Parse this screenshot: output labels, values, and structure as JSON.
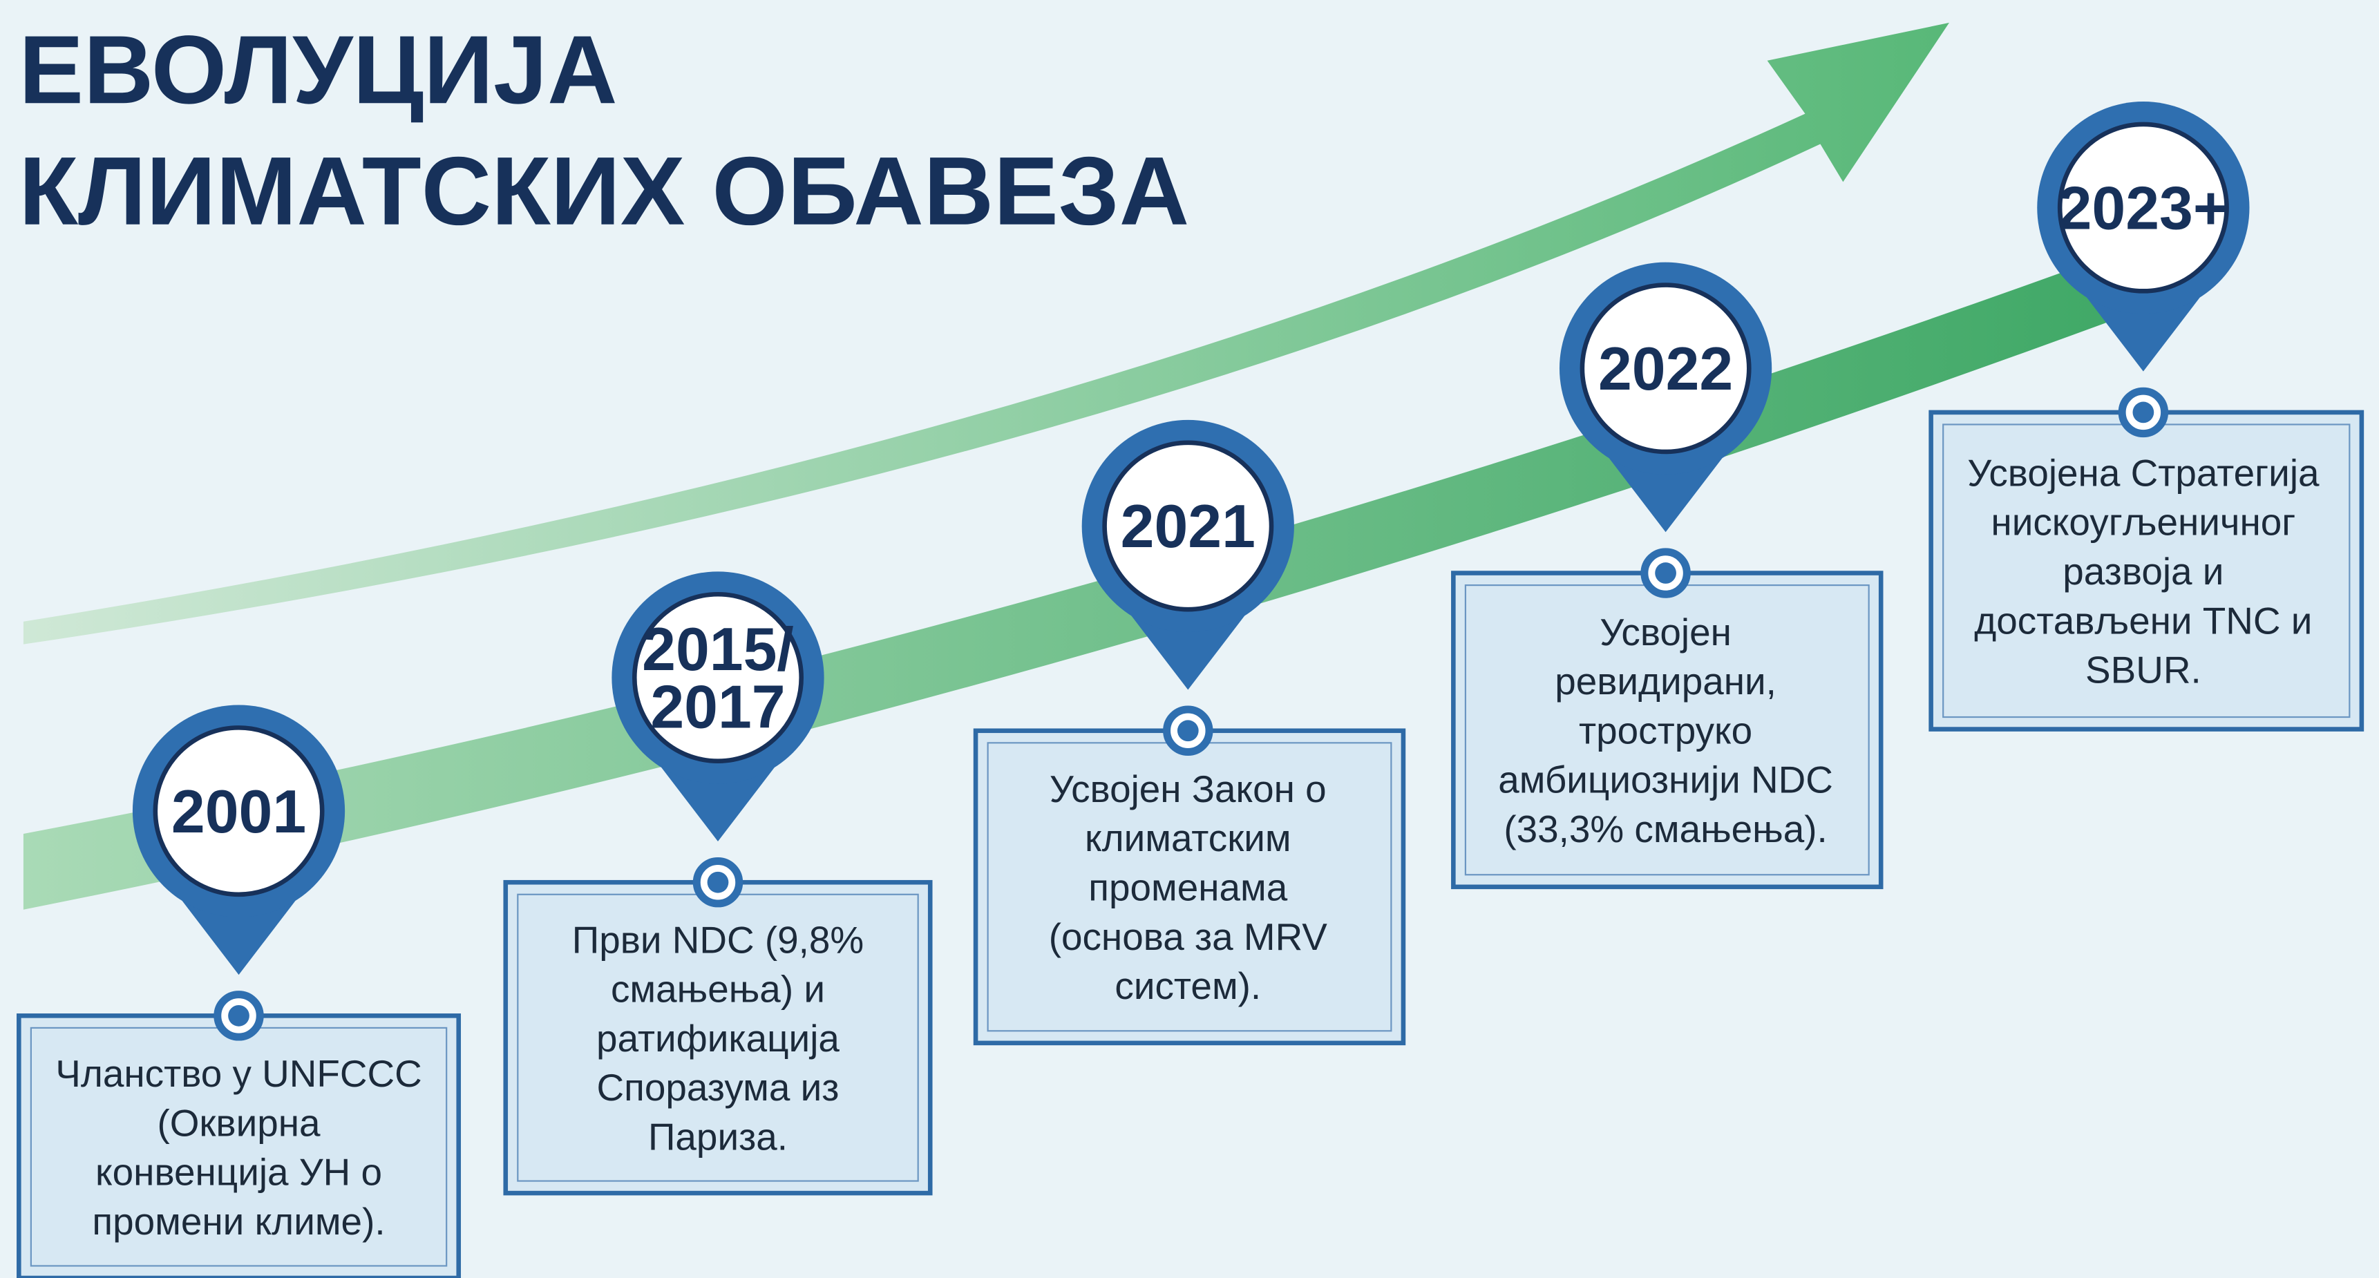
{
  "title": {
    "lines": [
      "ЕВОЛУЦИЈА",
      "КЛИМАТСКИХ ОБАВЕЗА"
    ]
  },
  "milestones": [
    {
      "year_lines": [
        "2001"
      ],
      "text": [
        "Чланство у UNFCCC",
        "(Оквирна",
        "конвенција УН о",
        "промени климе)."
      ]
    },
    {
      "year_lines": [
        "2015/",
        "2017"
      ],
      "text": [
        "Први NDC (9,8%",
        "смањења) и",
        "ратификација",
        "Споразума из",
        "Париза."
      ]
    },
    {
      "year_lines": [
        "2021"
      ],
      "text": [
        "Усвојен Закон о",
        "климатским",
        "променама",
        "(основа за MRV",
        "систем)."
      ]
    },
    {
      "year_lines": [
        "2022"
      ],
      "text": [
        "Усвојен",
        "ревидирани,",
        "троструко",
        "амбициознији NDC",
        "(33,3% смањења)."
      ]
    },
    {
      "year_lines": [
        "2023+"
      ],
      "text": [
        "Усвојена Стратегија",
        "нискоугљеничног",
        "развоја и",
        "достављени TNC и",
        "SBUR."
      ]
    }
  ]
}
